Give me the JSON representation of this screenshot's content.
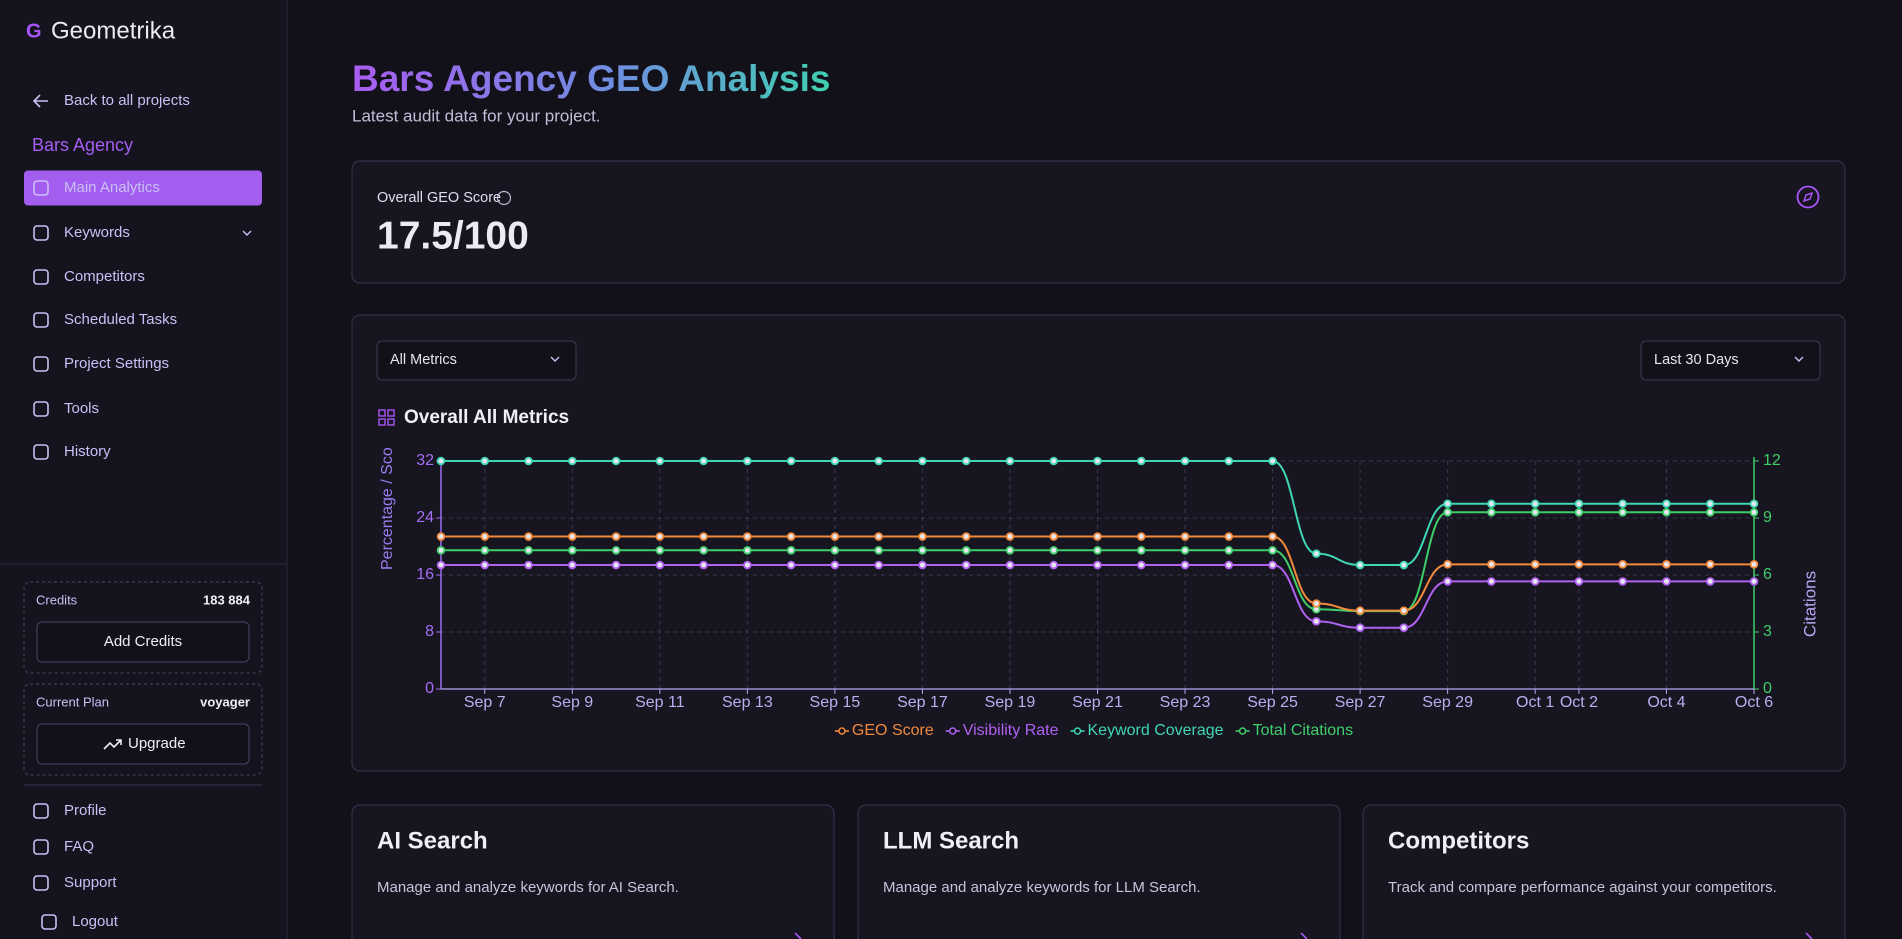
{
  "sidebar": {
    "logo": "Geometrika",
    "back": "Back to all projects",
    "project": "Bars Agency",
    "nav": [
      "Main Analytics",
      "Keywords",
      "Competitors",
      "Scheduled Tasks",
      "Project Settings",
      "Tools",
      "History"
    ],
    "credits": {
      "label": "Credits",
      "value": "183 884",
      "button": "Add Credits"
    },
    "plan": {
      "label": "Current Plan",
      "value": "voyager",
      "button": "Upgrade"
    },
    "footer": [
      "Profile",
      "FAQ",
      "Support",
      "Logout"
    ]
  },
  "header": {
    "title": "Bars Agency GEO Analysis",
    "subtitle": "Latest audit data for your project."
  },
  "score": {
    "label": "Overall GEO Score",
    "value": "17.5/100"
  },
  "filters": {
    "metric": "All Metrics",
    "range": "Last 30 Days"
  },
  "chart_data": {
    "type": "line",
    "title": "Overall All Metrics",
    "y_label": "Percentage / Score",
    "y2_label": "Citations",
    "categories": [
      null,
      "Sep 7",
      null,
      "Sep 9",
      null,
      "Sep 11",
      null,
      "Sep 13",
      null,
      "Sep 15",
      null,
      "Sep 17",
      null,
      "Sep 19",
      null,
      "Sep 21",
      null,
      "Sep 23",
      null,
      "Sep 25",
      null,
      "Sep 27",
      null,
      "Sep 29",
      null,
      "Oct 1",
      "Oct 2",
      null,
      "Oct 4",
      null,
      "Oct 6"
    ],
    "series": [
      {
        "name": "GEO Score",
        "color": "#f28a3c",
        "values": [
          21.4,
          21.4,
          21.4,
          21.4,
          21.4,
          21.4,
          21.4,
          21.4,
          21.4,
          21.4,
          21.4,
          21.4,
          21.4,
          21.4,
          21.4,
          21.4,
          21.4,
          21.4,
          21.4,
          21.4,
          12,
          11,
          11,
          17.5,
          17.5,
          17.5,
          17.5,
          17.5,
          17.5,
          17.5,
          17.5
        ]
      },
      {
        "name": "Visibility Rate",
        "color": "#b061f2",
        "values": [
          17.4,
          17.4,
          17.4,
          17.4,
          17.4,
          17.4,
          17.4,
          17.4,
          17.4,
          17.4,
          17.4,
          17.4,
          17.4,
          17.4,
          17.4,
          17.4,
          17.4,
          17.4,
          17.4,
          17.4,
          9.5,
          8.6,
          8.6,
          15.1,
          15.1,
          15.1,
          15.1,
          15.1,
          15.1,
          15.1,
          15.1
        ]
      },
      {
        "name": "Keyword Coverage",
        "color": "#3ed6b4",
        "values": [
          32,
          32,
          32,
          32,
          32,
          32,
          32,
          32,
          32,
          32,
          32,
          32,
          32,
          32,
          32,
          32,
          32,
          32,
          32,
          32,
          19,
          17.4,
          17.4,
          26,
          26,
          26,
          26,
          26,
          26,
          26,
          26
        ]
      },
      {
        "name": "Total Citations",
        "color": "#3fcf6a",
        "axis": "y2",
        "values": [
          7.3,
          7.3,
          7.3,
          7.3,
          7.3,
          7.3,
          7.3,
          7.3,
          7.3,
          7.3,
          7.3,
          7.3,
          7.3,
          7.3,
          7.3,
          7.3,
          7.3,
          7.3,
          7.3,
          7.3,
          4.2,
          4.1,
          4.1,
          9.3,
          9.3,
          9.3,
          9.3,
          9.3,
          9.3,
          9.3,
          9.3
        ]
      }
    ],
    "ylim": [
      0,
      32
    ],
    "yticks": [
      0,
      8,
      16,
      24,
      32
    ],
    "y2lim": [
      0,
      12
    ],
    "y2ticks": [
      0,
      3,
      6,
      9,
      12
    ],
    "grid": true
  },
  "cards": [
    {
      "title": "AI Search",
      "description": "Manage and analyze keywords for AI Search."
    },
    {
      "title": "LLM Search",
      "description": "Manage and analyze keywords for LLM Search."
    },
    {
      "title": "Competitors",
      "description": "Track and compare performance against your competitors."
    }
  ]
}
